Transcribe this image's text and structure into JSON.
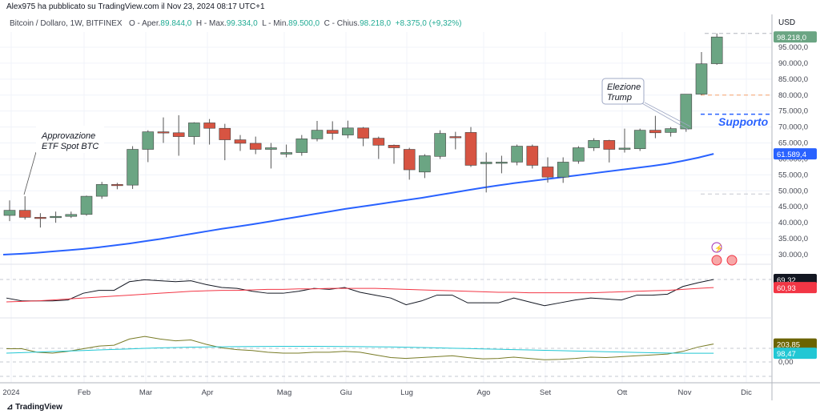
{
  "header": {
    "author": "Alex975 ha pubblicato su TradingView.com il Nov 23, 2024 08:17 UTC+1"
  },
  "legend": {
    "symbol": "Bitcoin / Dollaro, 1W, BITFINEX",
    "o_label": "O - Aper.",
    "o": "89.844,0",
    "h_label": "H - Max.",
    "h": "99.334,0",
    "l_label": "L - Min.",
    "l": "89.500,0",
    "c_label": "C - Chius.",
    "c": "98.218,0",
    "change": "+8.375,0 (+9,32%)"
  },
  "currency": "USD",
  "price_axis": [
    "95.000,0",
    "90.000,0",
    "85.000,0",
    "80.000,0",
    "75.000,0",
    "70.000,0",
    "65.000,0",
    "60.000,0",
    "55.000,0",
    "50.000,0",
    "45.000,0",
    "40.000,0",
    "35.000,0",
    "30.000,0"
  ],
  "price_labels": {
    "last": "98.218,0",
    "ma": "61.589,4",
    "rsi": "69,32",
    "rsi_ma": "60,93",
    "cci": "203,85",
    "cci_ma": "98,47",
    "zero": "0,00"
  },
  "time_axis": [
    "2024",
    "Feb",
    "Mar",
    "Apr",
    "Mag",
    "Giu",
    "Lug",
    "Ago",
    "Set",
    "Ott",
    "Nov",
    "Dic"
  ],
  "annotations": {
    "etf": [
      "Approvazione",
      "ETF Spot BTC"
    ],
    "trump": [
      "Elezione",
      "Trump"
    ],
    "support": "Supporto"
  },
  "colors": {
    "up": "#6ba583",
    "down": "#d75442",
    "ma": "#2962ff",
    "rsi": "#131722",
    "rsi_ma": "#f23645",
    "cci": "#787b26",
    "cci_ma": "#22c7d4"
  },
  "footer": {
    "brand": "TradingView"
  },
  "chart_data": {
    "type": "candlestick",
    "title": "Bitcoin / Dollaro, 1W, BITFINEX",
    "ylim": [
      25000,
      100000
    ],
    "ohlc": [
      [
        42300,
        47000,
        40500,
        43900
      ],
      [
        43900,
        48300,
        41000,
        41700
      ],
      [
        41700,
        43000,
        38500,
        41600
      ],
      [
        41600,
        43500,
        40000,
        42000
      ],
      [
        42000,
        43500,
        41500,
        42600
      ],
      [
        42600,
        48500,
        42200,
        48300
      ],
      [
        48300,
        52800,
        47500,
        52000
      ],
      [
        52000,
        52500,
        50500,
        51800
      ],
      [
        51800,
        64000,
        50600,
        63000
      ],
      [
        63000,
        69000,
        59000,
        68500
      ],
      [
        68500,
        73000,
        65000,
        68200
      ],
      [
        68200,
        73700,
        61000,
        67000
      ],
      [
        67000,
        71500,
        64500,
        71300
      ],
      [
        71300,
        72500,
        64500,
        69600
      ],
      [
        69600,
        71000,
        59600,
        66000
      ],
      [
        66000,
        67500,
        62500,
        64900
      ],
      [
        64900,
        67000,
        61500,
        63000
      ],
      [
        63000,
        65000,
        57000,
        63500
      ],
      [
        61500,
        64500,
        60500,
        62000
      ],
      [
        62000,
        67500,
        61000,
        66300
      ],
      [
        66300,
        71900,
        65500,
        69000
      ],
      [
        69000,
        71800,
        66000,
        68000
      ],
      [
        67500,
        72000,
        66500,
        69700
      ],
      [
        69700,
        70000,
        64000,
        66500
      ],
      [
        66500,
        67000,
        60000,
        64300
      ],
      [
        64300,
        64500,
        58500,
        63500
      ],
      [
        63000,
        63500,
        53500,
        56600
      ],
      [
        55900,
        61500,
        54000,
        61000
      ],
      [
        60800,
        69000,
        60000,
        68000
      ],
      [
        67000,
        68500,
        63000,
        66800
      ],
      [
        68300,
        70000,
        57500,
        58000
      ],
      [
        58500,
        62000,
        49500,
        59000
      ],
      [
        58700,
        61000,
        55500,
        59000
      ],
      [
        59000,
        64500,
        58000,
        64000
      ],
      [
        64000,
        64500,
        57000,
        58000
      ],
      [
        57500,
        60500,
        52600,
        54300
      ],
      [
        54300,
        60500,
        52500,
        59000
      ],
      [
        59300,
        64000,
        58500,
        63500
      ],
      [
        63500,
        66500,
        62500,
        65800
      ],
      [
        65800,
        66000,
        58900,
        63000
      ],
      [
        63000,
        69500,
        62000,
        63400
      ],
      [
        63200,
        69500,
        62500,
        69000
      ],
      [
        69000,
        73500,
        66500,
        68200
      ],
      [
        68300,
        70000,
        67000,
        69500
      ],
      [
        69400,
        80300,
        68500,
        80300
      ],
      [
        80300,
        93500,
        80000,
        89800
      ],
      [
        89844,
        99334,
        89500,
        98218
      ]
    ],
    "ma": [
      30000,
      30300,
      30600,
      31000,
      31400,
      31800,
      32300,
      32900,
      33500,
      34200,
      34900,
      35700,
      36500,
      37300,
      38100,
      38800,
      39500,
      40300,
      41100,
      41900,
      42700,
      43500,
      44300,
      45000,
      45700,
      46400,
      47100,
      47800,
      48600,
      49400,
      50200,
      51000,
      51700,
      52400,
      53000,
      53600,
      54200,
      54800,
      55400,
      56000,
      56600,
      57200,
      57800,
      58500,
      59400,
      60400,
      61589
    ],
    "rsi": [
      50,
      47,
      47,
      47,
      48,
      55,
      58,
      58,
      67,
      69,
      68,
      67,
      68,
      64,
      61,
      60,
      57,
      55,
      55,
      57,
      60,
      59,
      61,
      56,
      53,
      50,
      43,
      47,
      53,
      53,
      45,
      45,
      45,
      50,
      46,
      42,
      45,
      48,
      50,
      49,
      48,
      53,
      53,
      54,
      62,
      66,
      69.32
    ],
    "rsi_ma": [
      46,
      46.5,
      47,
      48,
      49,
      50,
      51,
      52,
      53,
      54,
      55,
      56,
      57,
      57.5,
      58,
      58,
      58.5,
      59,
      59,
      59.5,
      59.5,
      60,
      60,
      60,
      60,
      59.5,
      59,
      58.5,
      58,
      57.5,
      57,
      56.5,
      56,
      56,
      55.5,
      55.5,
      55.5,
      55.5,
      55.5,
      56,
      56.5,
      57,
      57.5,
      58,
      59,
      60,
      60.93
    ],
    "cci": [
      150,
      150,
      110,
      100,
      120,
      150,
      180,
      190,
      260,
      290,
      260,
      240,
      250,
      200,
      160,
      140,
      130,
      110,
      100,
      100,
      110,
      110,
      120,
      110,
      80,
      50,
      40,
      50,
      60,
      70,
      50,
      35,
      40,
      55,
      40,
      25,
      30,
      40,
      55,
      50,
      60,
      70,
      80,
      90,
      120,
      170,
      203.85
    ],
    "cci_ma": [
      100,
      106,
      112,
      118,
      124,
      130,
      136,
      142,
      148,
      154,
      160,
      164,
      168,
      170,
      172,
      174,
      175,
      176,
      177,
      177,
      177,
      176,
      175,
      174,
      172,
      170,
      167,
      164,
      160,
      156,
      152,
      148,
      144,
      140,
      136,
      132,
      128,
      124,
      120,
      116,
      112,
      108,
      104,
      101,
      99,
      98.5,
      98.47
    ]
  }
}
